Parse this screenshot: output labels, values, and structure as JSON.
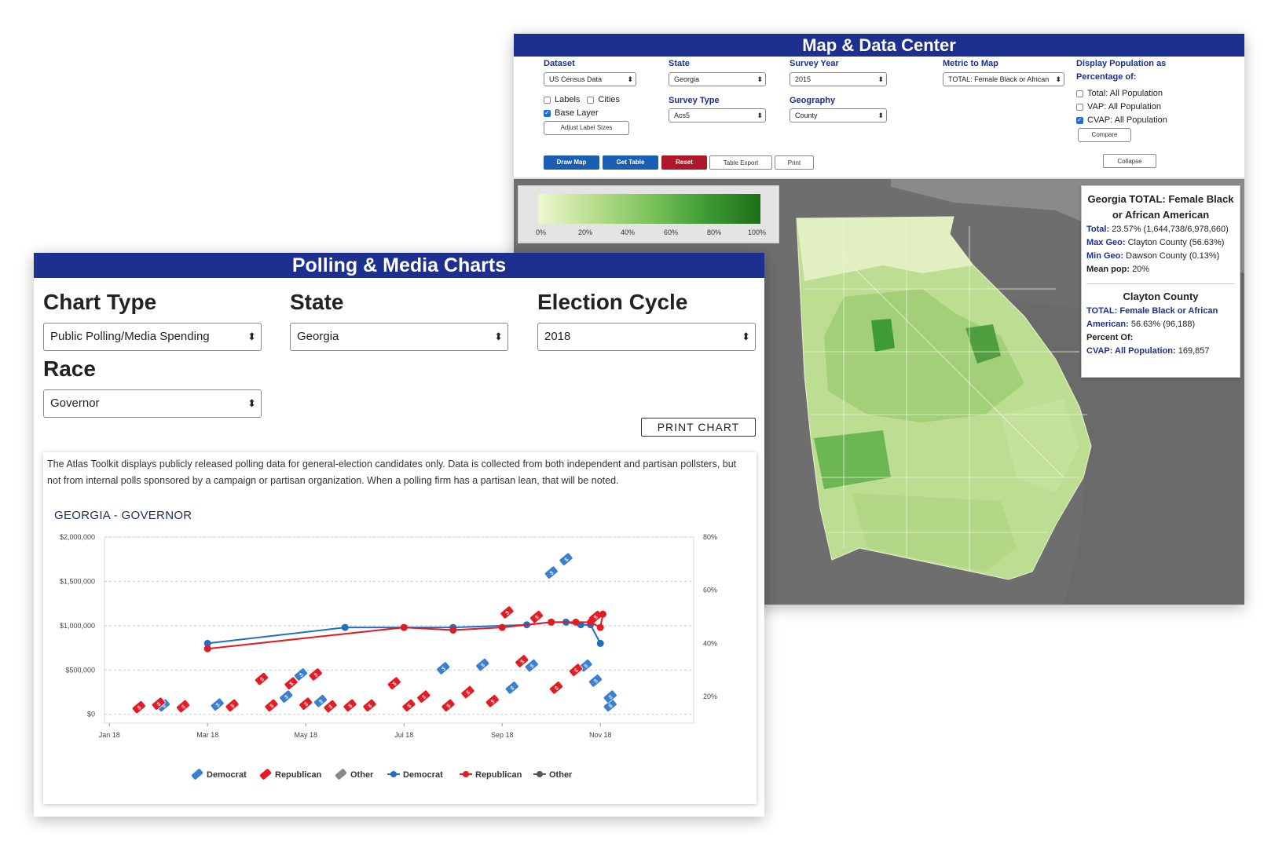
{
  "map_center": {
    "title": "Map & Data Center",
    "dataset_label": "Dataset",
    "dataset_value": "US Census Data",
    "state_label": "State",
    "state_value": "Georgia",
    "survey_year_label": "Survey Year",
    "survey_year_value": "2015",
    "metric_label": "Metric to Map",
    "metric_value": "TOTAL: Female Black or African",
    "display_label_1": "Display Population as",
    "display_label_2": "Percentage of:",
    "labels_checkbox": "Labels",
    "cities_checkbox": "Cities",
    "base_layer_checkbox": "Base Layer",
    "adjust_label_sizes": "Adjust Label Sizes",
    "survey_type_label": "Survey Type",
    "survey_type_value": "Acs5",
    "geography_label": "Geography",
    "geography_value": "County",
    "pct_options": [
      "Total: All Population",
      "VAP: All Population",
      "CVAP: All Population"
    ],
    "compare_button": "Compare",
    "collapse_button": "Collapse",
    "draw_map_button": "Draw Map",
    "get_table_button": "Get Table",
    "reset_button": "Reset",
    "table_export_button": "Table Export",
    "print_button": "Print",
    "legend_ticks": [
      "0%",
      "20%",
      "40%",
      "60%",
      "80%",
      "100%"
    ],
    "info": {
      "title": "Georgia TOTAL: Female Black or African American",
      "total_label": "Total:",
      "total_value": "23.57% (1,644,738/6,978,660)",
      "max_label": "Max Geo:",
      "max_value": "Clayton County (56.63%)",
      "min_label": "Min Geo:",
      "min_value": "Dawson County (0.13%)",
      "mean_label": "Mean pop:",
      "mean_value": "20%",
      "county_title": "Clayton County",
      "county_metric_label": "TOTAL: Female Black or African American:",
      "county_metric_value": "56.63% (96,188)",
      "percent_of_label": "Percent Of:",
      "cvap_label": "CVAP: All Population:",
      "cvap_value": "169,857"
    },
    "colors": {
      "header": "#1d2f8f",
      "draw": "#1b5fb5",
      "reset": "#b1172b"
    }
  },
  "polling": {
    "title": "Polling & Media Charts",
    "chart_type_label": "Chart Type",
    "chart_type_value": "Public Polling/Media Spending",
    "state_label": "State",
    "state_value": "Georgia",
    "cycle_label": "Election Cycle",
    "cycle_value": "2018",
    "race_label": "Race",
    "race_value": "Governor",
    "print_chart_button": "PRINT CHART",
    "disclaimer": "The Atlas Toolkit displays publicly released polling data for general-election candidates only. Data is collected from both independent and partisan pollsters, but not from internal polls sponsored by a campaign or partisan organization. When a polling firm has a partisan lean, that will be noted."
  },
  "chart_data": {
    "type": "line",
    "title": "GEORGIA - GOVERNOR",
    "x_ticks": [
      "Jan 18",
      "Mar 18",
      "May 18",
      "Jul 18",
      "Sep 18",
      "Nov 18"
    ],
    "y_left_ticks": [
      "$0",
      "$500,000",
      "$1,000,000",
      "$1,500,000",
      "$2,000,000"
    ],
    "y_left_range": [
      -100000,
      2000000
    ],
    "y_right_ticks": [
      "20%",
      "40%",
      "60%",
      "80%"
    ],
    "y_right_range": [
      10,
      80
    ],
    "legend": [
      "Democrat",
      "Republican",
      "Other",
      "Democrat",
      "Republican",
      "Other"
    ],
    "poll_series": [
      {
        "name": "Democrat",
        "color": "#1f6fc2",
        "x_month": [
          3.0,
          5.8,
          7.0,
          8.0,
          9.5,
          10.0,
          10.3,
          10.6,
          10.8,
          11.0
        ],
        "y_pct": [
          40,
          46,
          46,
          46,
          47,
          48,
          48,
          47,
          47,
          40
        ]
      },
      {
        "name": "Republican",
        "color": "#e31b23",
        "x_month": [
          3.0,
          7.0,
          8.0,
          9.0,
          10.0,
          10.5,
          10.8,
          11.0,
          11.05
        ],
        "y_pct": [
          38,
          46,
          45,
          46,
          48,
          48,
          48,
          46,
          51
        ]
      }
    ],
    "spending_series": [
      {
        "name": "Democrat",
        "color": "#3a7fd0",
        "x_month": [
          2.1,
          3.2,
          4.6,
          4.9,
          5.3,
          7.8,
          8.6,
          9.2,
          9.6,
          10.0,
          10.3,
          10.7,
          10.9,
          11.2,
          11.2
        ],
        "y_dollars": [
          100000,
          110000,
          200000,
          450000,
          150000,
          520000,
          560000,
          300000,
          550000,
          1600000,
          1750000,
          550000,
          380000,
          100000,
          200000
        ]
      },
      {
        "name": "Republican",
        "color": "#e31b23",
        "x_month": [
          1.6,
          2.0,
          2.5,
          3.5,
          4.1,
          4.3,
          4.7,
          5.0,
          5.2,
          5.5,
          5.9,
          6.3,
          6.8,
          7.1,
          7.4,
          7.9,
          8.3,
          8.8,
          9.1,
          9.4,
          9.7,
          10.1,
          10.5,
          10.9
        ],
        "y_dollars": [
          80000,
          120000,
          90000,
          100000,
          400000,
          100000,
          350000,
          120000,
          450000,
          90000,
          100000,
          100000,
          350000,
          100000,
          200000,
          100000,
          250000,
          150000,
          1150000,
          600000,
          1100000,
          300000,
          500000,
          1100000
        ]
      },
      {
        "name": "Other",
        "color": "#555555",
        "x_month": [],
        "y_dollars": []
      }
    ]
  }
}
